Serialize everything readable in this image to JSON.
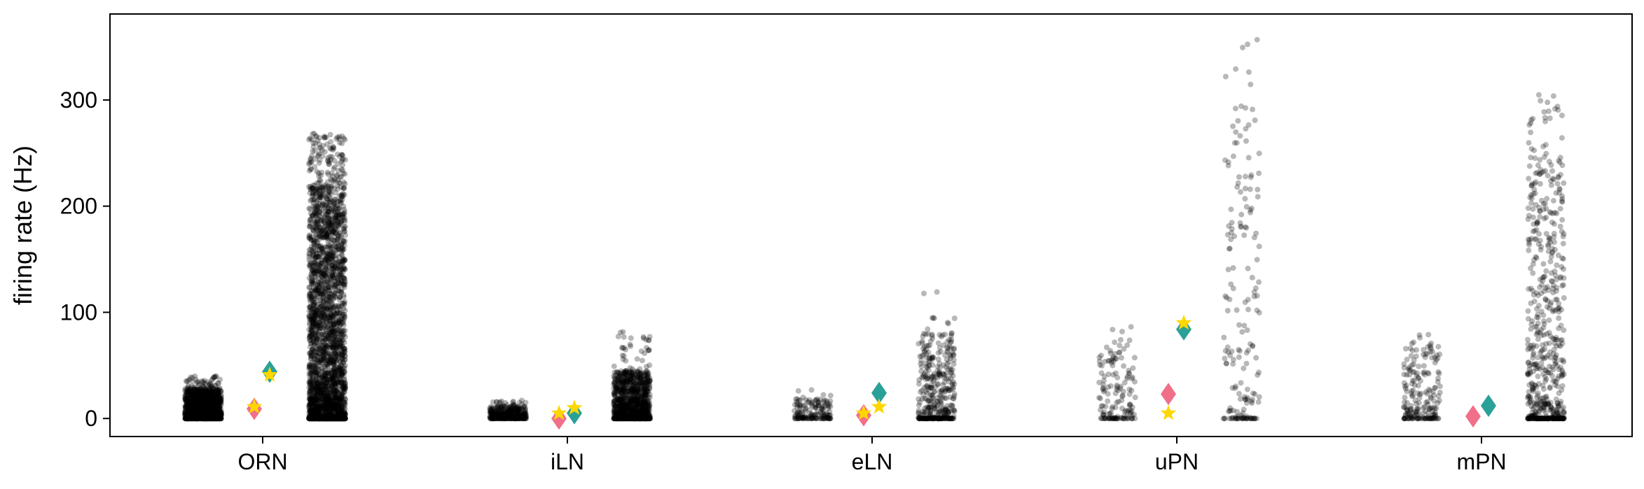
{
  "chart_data": {
    "type": "scatter",
    "title": "",
    "xlabel": "",
    "ylabel": "firing rate (Hz)",
    "categories": [
      "ORN",
      "iLN",
      "eLN",
      "uPN",
      "mPN"
    ],
    "ylim": [
      -17,
      381
    ],
    "yticks": [
      0,
      100,
      200,
      300
    ],
    "grid": false,
    "legend": "none",
    "colors": {
      "points": "#000000",
      "pink_diamond": "#f07089",
      "teal_diamond": "#2aa198",
      "star": "#ffd700"
    },
    "series": [
      {
        "marker": "strip",
        "group_position": "left",
        "points_by_category": [
          {
            "category": "ORN",
            "count": 1500,
            "min": 0,
            "typical_max": 28,
            "max": 40
          },
          {
            "category": "iLN",
            "count": 400,
            "min": 0,
            "typical_max": 12,
            "max": 17
          },
          {
            "category": "eLN",
            "count": 160,
            "min": 0,
            "typical_max": 20,
            "max": 29
          },
          {
            "category": "uPN",
            "count": 150,
            "min": 0,
            "typical_max": 70,
            "max": 88
          },
          {
            "category": "mPN",
            "count": 200,
            "min": 0,
            "typical_max": 70,
            "max": 84
          }
        ]
      },
      {
        "marker": "pink-diamond",
        "values": [
          9,
          0,
          3,
          23,
          2
        ]
      },
      {
        "marker": "teal-diamond",
        "values": [
          44,
          5,
          24,
          84,
          12
        ]
      },
      {
        "marker": "yellow-star",
        "values_left": [
          11,
          5,
          5,
          5,
          null
        ],
        "values_right": [
          41,
          10,
          11,
          90,
          null
        ]
      },
      {
        "marker": "strip",
        "group_position": "right",
        "points_by_category": [
          {
            "category": "ORN",
            "count": 3000,
            "min": 0,
            "typical_max": 220,
            "max": 269
          },
          {
            "category": "iLN",
            "count": 1200,
            "min": 0,
            "typical_max": 45,
            "max": 82
          },
          {
            "category": "eLN",
            "count": 400,
            "min": 0,
            "typical_max": 80,
            "max": 120
          },
          {
            "category": "uPN",
            "count": 180,
            "min": 0,
            "typical_max": 300,
            "max": 363
          },
          {
            "category": "mPN",
            "count": 600,
            "min": 0,
            "typical_max": 250,
            "max": 305
          }
        ]
      }
    ]
  }
}
